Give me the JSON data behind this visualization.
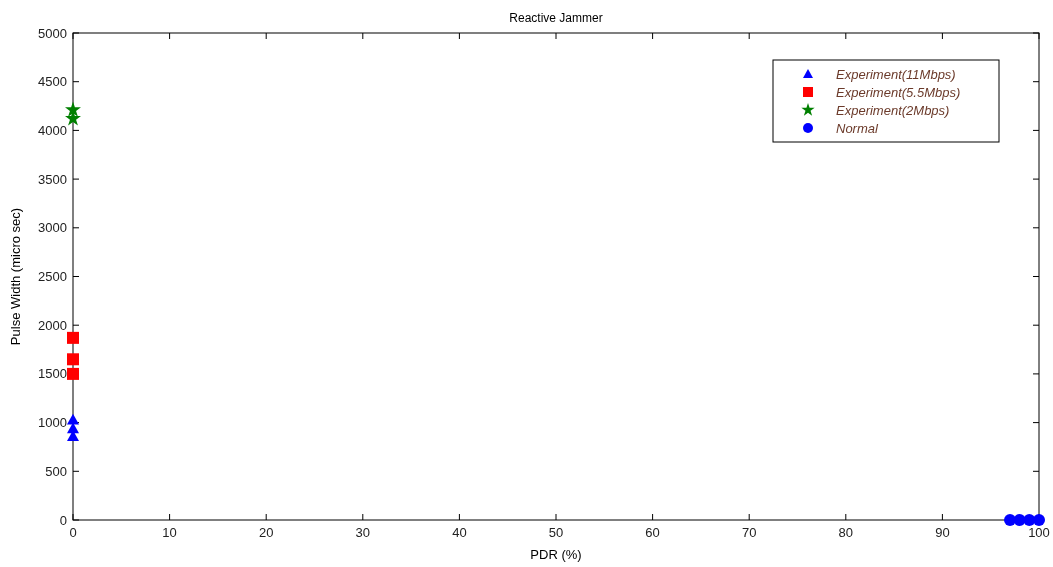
{
  "chart_data": {
    "type": "scatter",
    "title": "Reactive Jammer",
    "xlabel": "PDR (%)",
    "ylabel": "Pulse Width (micro sec)",
    "xlim": [
      0,
      100
    ],
    "xticks": [
      0,
      10,
      20,
      30,
      40,
      50,
      60,
      70,
      80,
      90,
      100
    ],
    "ylim": [
      0,
      5000
    ],
    "yticks": [
      0,
      500,
      1000,
      1500,
      2000,
      2500,
      3000,
      3500,
      4000,
      4500,
      5000
    ],
    "grid": false,
    "legend": "top right",
    "series": [
      {
        "name": "Experiment(11Mbps)",
        "color": "#0000ff",
        "marker": "triangle",
        "x": [
          0,
          0,
          0
        ],
        "values": [
          860,
          940,
          1030
        ]
      },
      {
        "name": "Experiment(5.5Mbps)",
        "color": "#ff0000",
        "marker": "square",
        "x": [
          0,
          0,
          0
        ],
        "values": [
          1500,
          1650,
          1870
        ]
      },
      {
        "name": "Experiment(2Mbps)",
        "color": "#008000",
        "marker": "star",
        "x": [
          0,
          0
        ],
        "values": [
          4120,
          4210
        ]
      },
      {
        "name": "Normal",
        "color": "#0000ff",
        "marker": "circle",
        "x": [
          97,
          98,
          99,
          100
        ],
        "values": [
          0,
          0,
          0,
          0
        ]
      }
    ]
  }
}
